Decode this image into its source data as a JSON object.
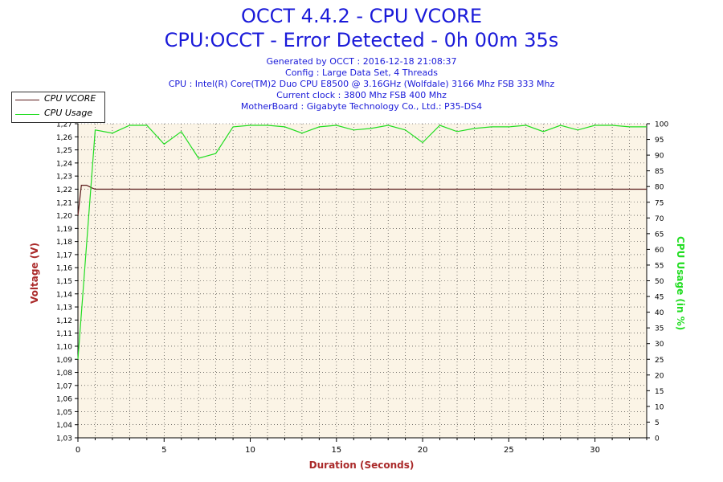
{
  "header": {
    "title": "OCCT 4.4.2 - CPU VCORE",
    "subtitle": "CPU:OCCT - Error Detected - 0h 00m 35s",
    "generated": "Generated by OCCT : 2016-12-18 21:08:37",
    "config": "Config : Large Data Set, 4 Threads",
    "cpu": "CPU : Intel(R) Core(TM)2 Duo CPU E8500 @ 3.16GHz (Wolfdale) 3166 Mhz FSB 333 Mhz",
    "clock": "Current clock : 3800 Mhz FSB 400 Mhz",
    "motherboard": "MotherBoard : Gigabyte Technology Co., Ltd.: P35-DS4"
  },
  "legend": {
    "vcore_label": "CPU VCORE",
    "usage_label": "CPU Usage"
  },
  "colors": {
    "vcore": "#5a1a1a",
    "usage": "#22dd22",
    "plot_bg": "#fbf4e6",
    "grid": "#222222",
    "left_axis": "#aa2a2a",
    "right_axis": "#22dd22",
    "title": "#1a1ad9"
  },
  "chart_data": {
    "type": "line",
    "xlabel": "Duration (Seconds)",
    "ylabel": "Voltage (V)",
    "y2label": "CPU Usage (in %)",
    "xlim": [
      0,
      33
    ],
    "ylim": [
      1.03,
      1.27
    ],
    "y2lim": [
      0,
      100
    ],
    "x_ticks": [
      0,
      5,
      10,
      15,
      20,
      25,
      30
    ],
    "y_ticks": [
      "1,03",
      "1,04",
      "1,05",
      "1,06",
      "1,07",
      "1,08",
      "1,09",
      "1,10",
      "1,11",
      "1,12",
      "1,13",
      "1,14",
      "1,15",
      "1,16",
      "1,17",
      "1,18",
      "1,19",
      "1,20",
      "1,21",
      "1,22",
      "1,23",
      "1,24",
      "1,25",
      "1,26",
      "1,27"
    ],
    "y2_ticks": [
      0,
      5,
      10,
      15,
      20,
      25,
      30,
      35,
      40,
      45,
      50,
      55,
      60,
      65,
      70,
      75,
      80,
      85,
      90,
      95,
      100
    ],
    "grid": true,
    "legend_position": "top-left",
    "series": [
      {
        "name": "CPU VCORE",
        "axis": "left",
        "x": [
          0,
          0.2,
          0.5,
          0.8,
          1,
          2,
          5,
          10,
          15,
          20,
          25,
          30,
          33
        ],
        "y": [
          1.2,
          1.223,
          1.223,
          1.221,
          1.22,
          1.22,
          1.22,
          1.22,
          1.22,
          1.22,
          1.22,
          1.22,
          1.22
        ]
      },
      {
        "name": "CPU Usage",
        "axis": "right",
        "x": [
          0,
          1,
          2,
          3,
          4,
          5,
          6,
          7,
          8,
          9,
          10,
          11,
          12,
          13,
          14,
          15,
          16,
          17,
          18,
          19,
          20,
          21,
          22,
          23,
          24,
          25,
          26,
          27,
          28,
          29,
          30,
          31,
          32,
          33
        ],
        "y": [
          25,
          98,
          97,
          99.5,
          99.5,
          93.5,
          97.5,
          89,
          90.5,
          99,
          99.5,
          99.5,
          99,
          97,
          99,
          99.5,
          98,
          98.5,
          99.5,
          98,
          94,
          99.5,
          97.5,
          98.5,
          99,
          99,
          99.5,
          97.5,
          99.5,
          98,
          99.5,
          99.5,
          99,
          99
        ]
      }
    ]
  }
}
